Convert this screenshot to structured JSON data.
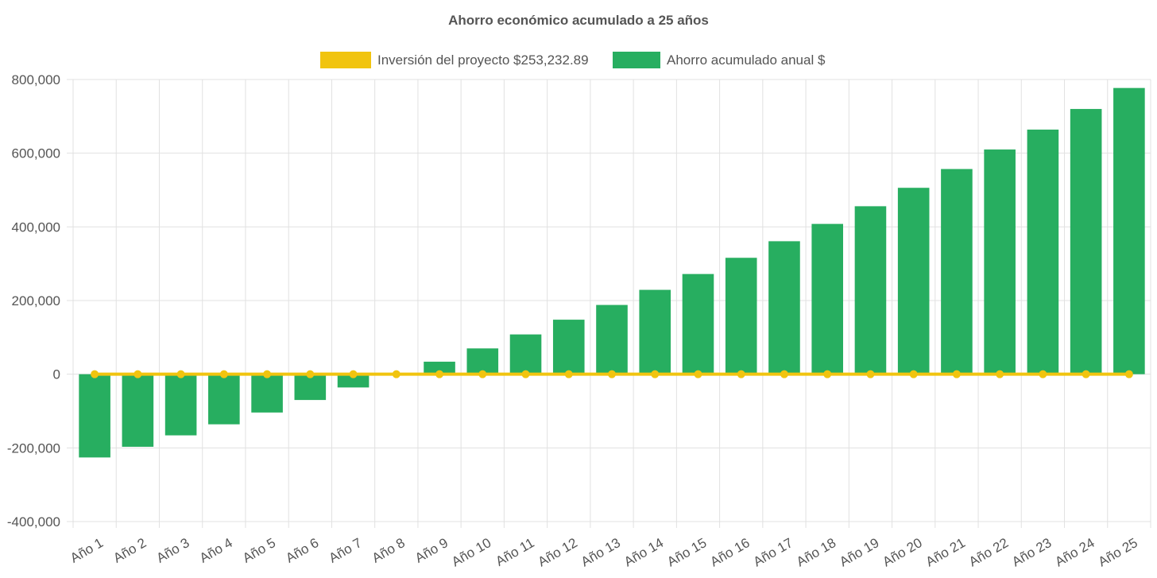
{
  "chart_data": {
    "type": "bar",
    "title": "Ahorro económico acumulado a 25 años",
    "categories": [
      "Año 1",
      "Año 2",
      "Año 3",
      "Año 4",
      "Año 5",
      "Año 6",
      "Año 7",
      "Año 8",
      "Año 9",
      "Año 10",
      "Año 11",
      "Año 12",
      "Año 13",
      "Año 14",
      "Año 15",
      "Año 16",
      "Año 17",
      "Año 18",
      "Año 19",
      "Año 20",
      "Año 21",
      "Año 22",
      "Año 23",
      "Año 24",
      "Año 25"
    ],
    "series": [
      {
        "name": "Inversión del proyecto $253,232.89",
        "kind": "line",
        "color": "#f1c40f",
        "values": [
          0,
          0,
          0,
          0,
          0,
          0,
          0,
          0,
          0,
          0,
          0,
          0,
          0,
          0,
          0,
          0,
          0,
          0,
          0,
          0,
          0,
          0,
          0,
          0,
          0
        ]
      },
      {
        "name": "Ahorro acumulado anual $",
        "kind": "bar",
        "color": "#27ae60",
        "values": [
          -226000,
          -197000,
          -166000,
          -136000,
          -104000,
          -70000,
          -36000,
          0,
          34000,
          70000,
          108000,
          148000,
          188000,
          229000,
          272000,
          316000,
          361000,
          408000,
          456000,
          506000,
          557000,
          610000,
          664000,
          720000,
          777000
        ]
      }
    ],
    "ylim": [
      -400000,
      800000
    ],
    "yticks": [
      -400000,
      -200000,
      0,
      200000,
      400000,
      600000,
      800000
    ],
    "ytick_labels": [
      "-400,000",
      "-200,000",
      "0",
      "200,000",
      "400,000",
      "600,000",
      "800,000"
    ],
    "grid": true,
    "legend_position": "top"
  },
  "colors": {
    "grid": "#e1e1e1",
    "axis_text": "#555555"
  }
}
